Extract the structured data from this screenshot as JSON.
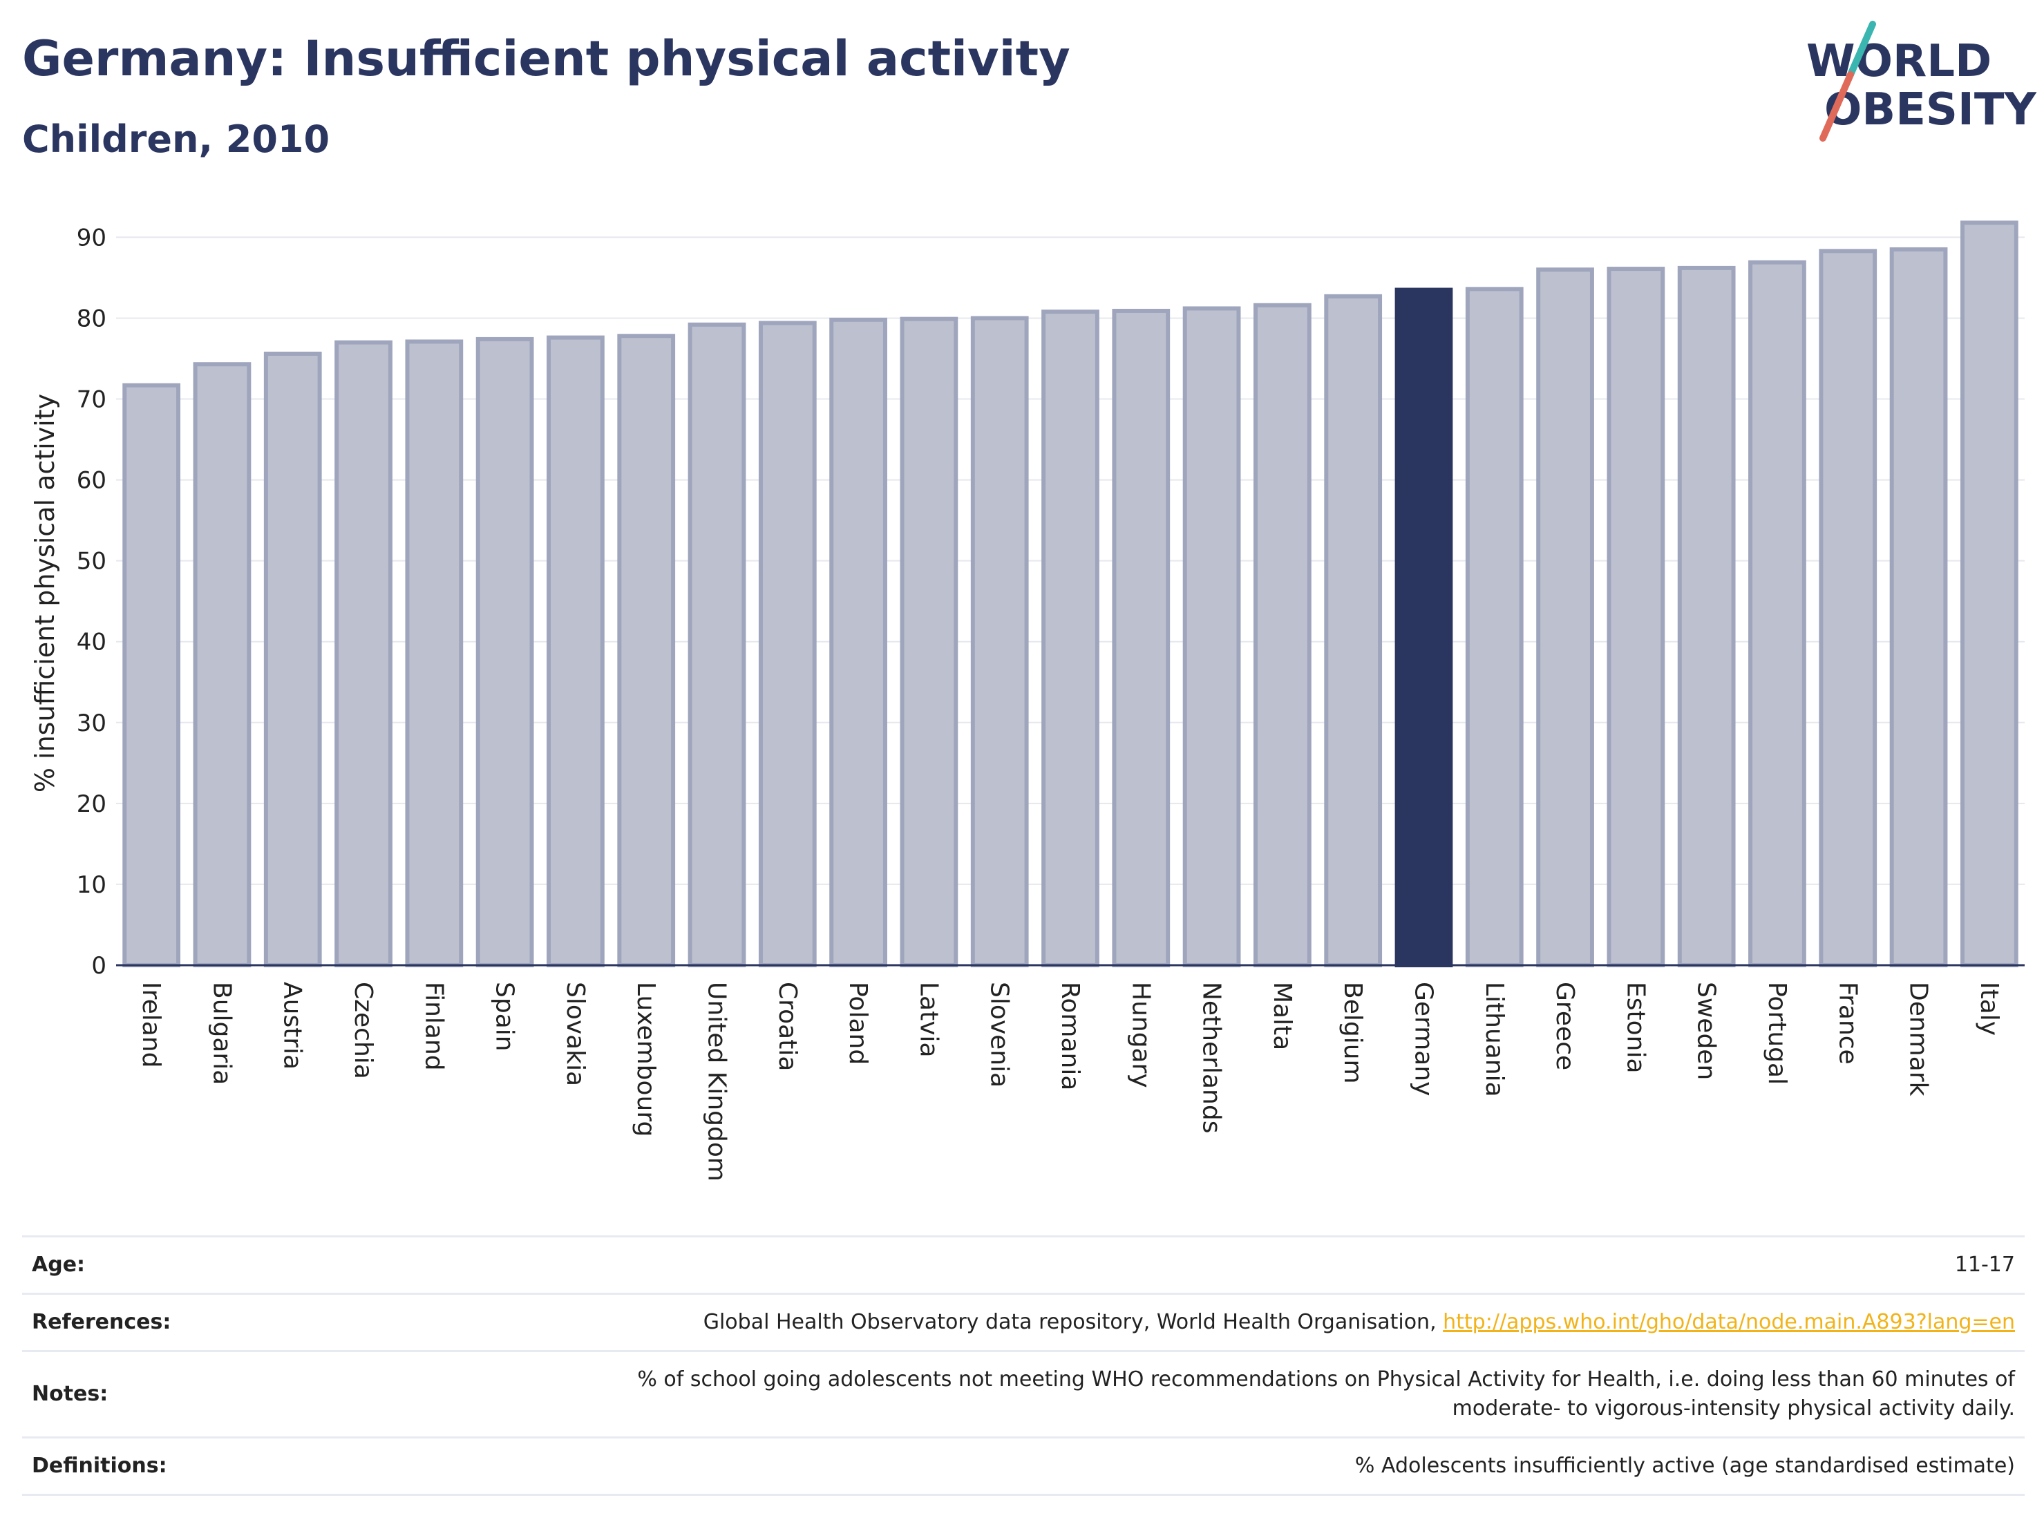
{
  "header": {
    "title": "Germany: Insufficient physical activity",
    "subtitle": "Children, 2010"
  },
  "logo": {
    "line1": "WORLD",
    "line2": "OBESITY"
  },
  "chart_data": {
    "type": "bar",
    "title": "Germany: Insufficient physical activity",
    "subtitle": "Children, 2010",
    "xlabel": "",
    "ylabel": "% insufficient physical activity",
    "ylim": [
      0,
      92
    ],
    "yticks": [
      0,
      10,
      20,
      30,
      40,
      50,
      60,
      70,
      80,
      90
    ],
    "grid": true,
    "highlight": "Germany",
    "categories": [
      "Ireland",
      "Bulgaria",
      "Austria",
      "Czechia",
      "Finland",
      "Spain",
      "Slovakia",
      "Luxembourg",
      "United Kingdom",
      "Croatia",
      "Poland",
      "Latvia",
      "Slovenia",
      "Romania",
      "Hungary",
      "Netherlands",
      "Malta",
      "Belgium",
      "Germany",
      "Lithuania",
      "Greece",
      "Estonia",
      "Sweden",
      "Portugal",
      "France",
      "Denmark",
      "Italy"
    ],
    "values": [
      71.7,
      74.3,
      75.6,
      77.0,
      77.1,
      77.4,
      77.6,
      77.8,
      79.2,
      79.4,
      79.8,
      79.9,
      80.0,
      80.8,
      80.9,
      81.2,
      81.6,
      82.7,
      83.5,
      83.6,
      86.0,
      86.1,
      86.2,
      86.9,
      88.3,
      88.5,
      91.8
    ]
  },
  "colors": {
    "bar": "#bdc1cf",
    "bar_border": "#9fa5bc",
    "highlight": "#2a3560",
    "title": "#2a3560",
    "link": "#f2b31a",
    "logo_teal": "#3ab5b0",
    "logo_red": "#e06a5a"
  },
  "info": {
    "age_label": "Age:",
    "age_value": "11-17",
    "references_label": "References:",
    "references_text": "Global Health Observatory data repository, World Health Organisation, ",
    "references_link": "http://apps.who.int/gho/data/node.main.A893?lang=en",
    "notes_label": "Notes:",
    "notes_line1": "% of school going adolescents not meeting WHO recommendations on Physical Activity for Health, i.e. doing less than 60 minutes of",
    "notes_line2": "moderate- to vigorous-intensity physical activity daily.",
    "definitions_label": "Definitions:",
    "definitions_text": "% Adolescents insufficiently active (age standardised estimate)"
  }
}
